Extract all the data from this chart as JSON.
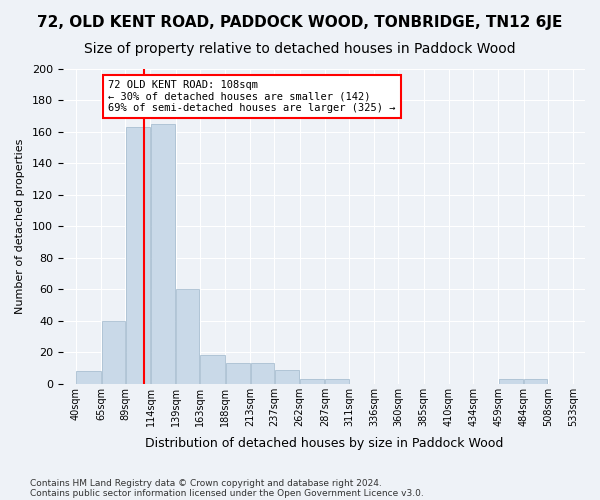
{
  "title": "72, OLD KENT ROAD, PADDOCK WOOD, TONBRIDGE, TN12 6JE",
  "subtitle": "Size of property relative to detached houses in Paddock Wood",
  "xlabel": "Distribution of detached houses by size in Paddock Wood",
  "ylabel": "Number of detached properties",
  "bar_color": "#c9d9e8",
  "bar_edgecolor": "#a0b8cc",
  "vline_x": 108,
  "vline_color": "red",
  "annotation_text": "72 OLD KENT ROAD: 108sqm\n← 30% of detached houses are smaller (142)\n69% of semi-detached houses are larger (325) →",
  "annotation_box_color": "white",
  "annotation_box_edgecolor": "red",
  "bin_edges": [
    40,
    65,
    89,
    114,
    139,
    163,
    188,
    213,
    237,
    262,
    287,
    311,
    336,
    360,
    385,
    410,
    434,
    459,
    484,
    508,
    533
  ],
  "bar_heights": [
    8,
    40,
    163,
    165,
    60,
    18,
    13,
    13,
    9,
    3,
    3,
    0,
    0,
    0,
    0,
    0,
    0,
    3,
    3,
    0
  ],
  "ylim": [
    0,
    200
  ],
  "yticks": [
    0,
    20,
    40,
    60,
    80,
    100,
    120,
    140,
    160,
    180,
    200
  ],
  "background_color": "#eef2f7",
  "plot_background": "#eef2f7",
  "footnote1": "Contains HM Land Registry data © Crown copyright and database right 2024.",
  "footnote2": "Contains public sector information licensed under the Open Government Licence v3.0.",
  "title_fontsize": 11,
  "subtitle_fontsize": 10
}
